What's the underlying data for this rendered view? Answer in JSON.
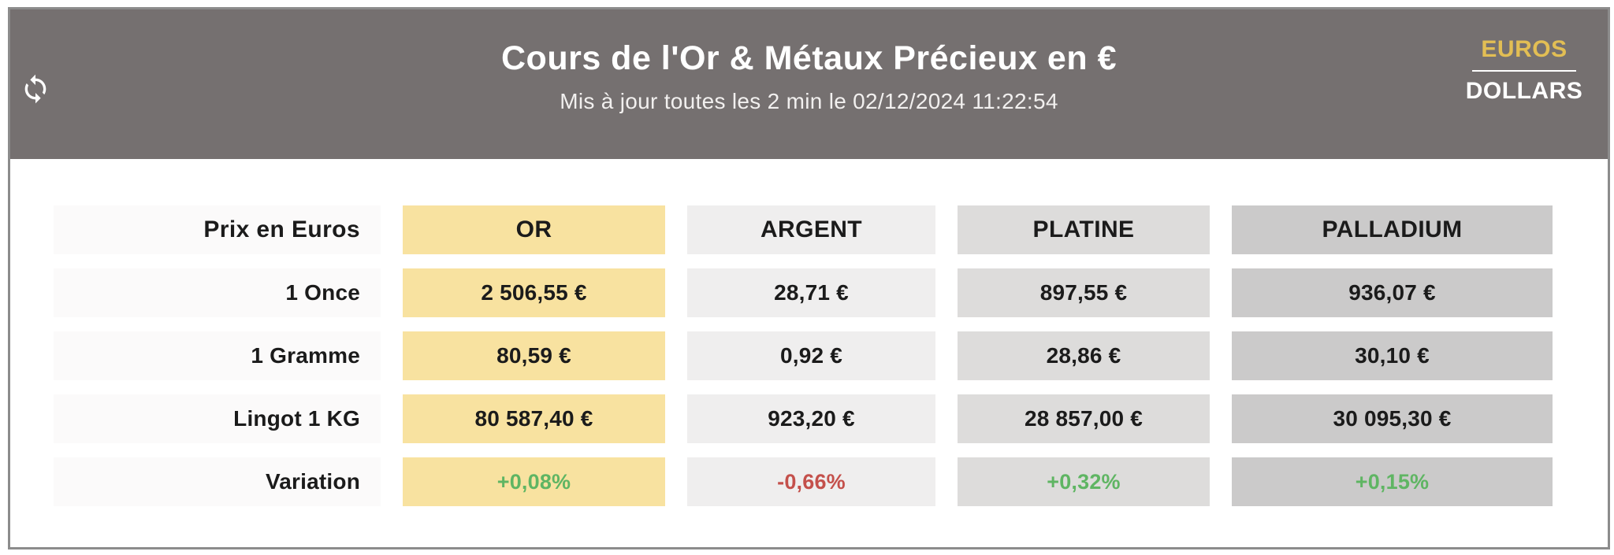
{
  "header": {
    "title": "Cours de l'Or & Métaux Précieux en €",
    "subtitle": "Mis à jour toutes les 2 min le 02/12/2024 11:22:54",
    "refresh_icon": "sync-icon",
    "currency_switch": {
      "euros_label": "EUROS",
      "dollars_label": "DOLLARS",
      "active": "EUROS"
    }
  },
  "colors": {
    "header_bg": "#757070",
    "accent_gold": "#E2BE54",
    "or_bg": "#F8E2A0",
    "argent_bg": "#EFEEEE",
    "platine_bg": "#DDDCDB",
    "palladium_bg": "#CBCACA",
    "label_bg": "#FBFAFA",
    "positive": "#5FB563",
    "negative": "#C4504B",
    "border": "#8C8C8C"
  },
  "table": {
    "corner_label": "Prix en Euros",
    "columns": [
      {
        "id": "or",
        "label": "OR"
      },
      {
        "id": "argent",
        "label": "ARGENT"
      },
      {
        "id": "platine",
        "label": "PLATINE"
      },
      {
        "id": "palladium",
        "label": "PALLADIUM"
      }
    ],
    "rows": [
      {
        "label": "1 Once",
        "type": "price",
        "values": [
          "2 506,55 €",
          "28,71 €",
          "897,55 €",
          "936,07 €"
        ]
      },
      {
        "label": "1 Gramme",
        "type": "price",
        "values": [
          "80,59 €",
          "0,92 €",
          "28,86 €",
          "30,10 €"
        ]
      },
      {
        "label": "Lingot 1 KG",
        "type": "price",
        "values": [
          "80 587,40 €",
          "923,20 €",
          "28 857,00 €",
          "30 095,30 €"
        ]
      },
      {
        "label": "Variation",
        "type": "variation",
        "values": [
          "+0,08%",
          "-0,66%",
          "+0,32%",
          "+0,15%"
        ],
        "trends": [
          "up",
          "down",
          "up",
          "up"
        ]
      }
    ]
  }
}
